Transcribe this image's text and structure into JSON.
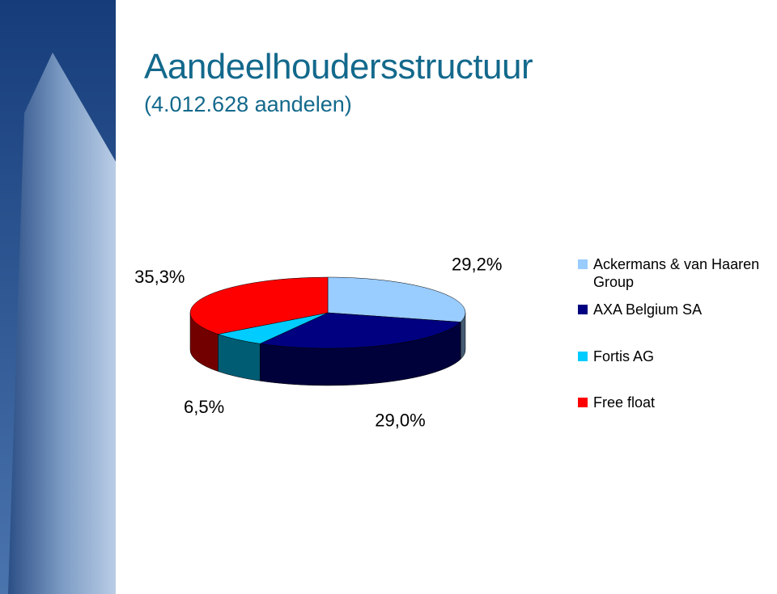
{
  "chart_data": {
    "type": "pie",
    "title": "Aandeelhoudersstructuur",
    "subtitle": "(4.012.628 aandelen)",
    "categories": [
      "Ackermans & van Haaren Group",
      "AXA Belgium SA",
      "Fortis AG",
      "Free float"
    ],
    "values": [
      29.2,
      29.0,
      6.5,
      35.3
    ],
    "value_labels": [
      "29,2%",
      "29,0%",
      "6,5%",
      "35,3%"
    ],
    "colors": [
      "#99ccff",
      "#000080",
      "#00ccff",
      "#ff0000"
    ]
  }
}
